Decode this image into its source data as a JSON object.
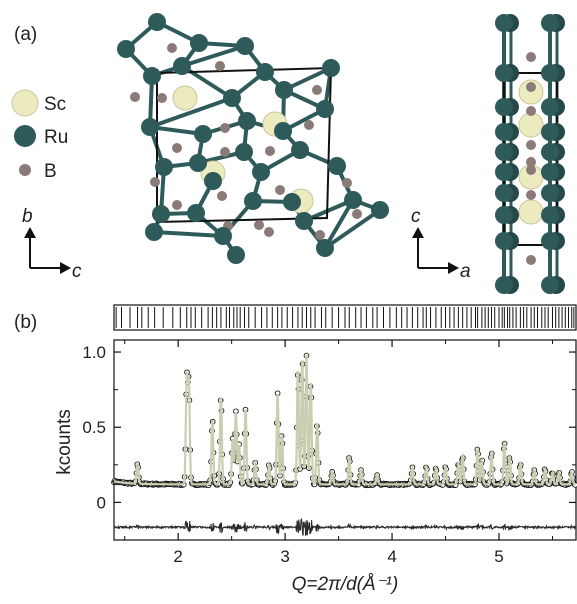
{
  "panels": {
    "a": "(a)",
    "b": "(b)"
  },
  "legend": [
    {
      "label": "Sc",
      "color": "#ecebc0"
    },
    {
      "label": "Ru",
      "color": "#2f5a5a"
    },
    {
      "label": "B",
      "color": "#8a7a78"
    }
  ],
  "axes_view1": {
    "vertical": "b",
    "horizontal": "c"
  },
  "axes_view2": {
    "vertical": "c",
    "horizontal": "a"
  },
  "colors": {
    "ru": "#2f5a5a",
    "sc": "#ecebc0",
    "b": "#8a7a78",
    "fit": "#c8cfb0",
    "data": "#1a1a1a",
    "frame": "#111111"
  },
  "chart_data": {
    "type": "scatter",
    "title": "",
    "xlabel": "Q=2π/d(Å⁻¹)",
    "ylabel": "kcounts",
    "xlim": [
      1.4,
      5.72
    ],
    "ylim": [
      -0.25,
      1.08
    ],
    "xticks": [
      2,
      3,
      4,
      5
    ],
    "xtick_labels": [
      "2",
      "3",
      "4",
      "5"
    ],
    "yticks": [
      0,
      0.5,
      1.0
    ],
    "ytick_labels": [
      "0",
      "0.5",
      "1.0"
    ],
    "background": 0.12,
    "peaks": [
      {
        "q": 1.62,
        "i": 0.25
      },
      {
        "q": 2.08,
        "i": 0.82
      },
      {
        "q": 2.1,
        "i": 0.78
      },
      {
        "q": 2.32,
        "i": 0.55
      },
      {
        "q": 2.4,
        "i": 0.7
      },
      {
        "q": 2.51,
        "i": 0.42
      },
      {
        "q": 2.54,
        "i": 0.6
      },
      {
        "q": 2.57,
        "i": 0.38
      },
      {
        "q": 2.63,
        "i": 0.62
      },
      {
        "q": 2.72,
        "i": 0.26
      },
      {
        "q": 2.85,
        "i": 0.25
      },
      {
        "q": 2.93,
        "i": 0.72
      },
      {
        "q": 2.97,
        "i": 0.45
      },
      {
        "q": 3.12,
        "i": 0.88
      },
      {
        "q": 3.16,
        "i": 0.95
      },
      {
        "q": 3.2,
        "i": 0.98
      },
      {
        "q": 3.24,
        "i": 0.8
      },
      {
        "q": 3.3,
        "i": 0.53
      },
      {
        "q": 3.44,
        "i": 0.2
      },
      {
        "q": 3.6,
        "i": 0.3
      },
      {
        "q": 3.71,
        "i": 0.21
      },
      {
        "q": 3.86,
        "i": 0.18
      },
      {
        "q": 4.19,
        "i": 0.23
      },
      {
        "q": 4.32,
        "i": 0.24
      },
      {
        "q": 4.41,
        "i": 0.23
      },
      {
        "q": 4.5,
        "i": 0.24
      },
      {
        "q": 4.62,
        "i": 0.26
      },
      {
        "q": 4.66,
        "i": 0.31
      },
      {
        "q": 4.8,
        "i": 0.36
      },
      {
        "q": 4.84,
        "i": 0.28
      },
      {
        "q": 4.93,
        "i": 0.33
      },
      {
        "q": 5.05,
        "i": 0.4
      },
      {
        "q": 5.1,
        "i": 0.3
      },
      {
        "q": 5.2,
        "i": 0.26
      },
      {
        "q": 5.33,
        "i": 0.22
      },
      {
        "q": 5.43,
        "i": 0.22
      },
      {
        "q": 5.5,
        "i": 0.2
      },
      {
        "q": 5.56,
        "i": 0.2
      },
      {
        "q": 5.68,
        "i": 0.2
      }
    ],
    "difference_offset": -0.165,
    "tick_marks_q": [
      1.42,
      1.47,
      1.55,
      1.62,
      1.66,
      1.72,
      1.78,
      1.86,
      1.95,
      2.02,
      2.08,
      2.12,
      2.16,
      2.22,
      2.28,
      2.32,
      2.36,
      2.4,
      2.45,
      2.48,
      2.52,
      2.55,
      2.58,
      2.62,
      2.66,
      2.72,
      2.78,
      2.83,
      2.88,
      2.93,
      2.97,
      3.02,
      3.07,
      3.12,
      3.16,
      3.2,
      3.24,
      3.28,
      3.34,
      3.38,
      3.44,
      3.5,
      3.56,
      3.6,
      3.66,
      3.71,
      3.76,
      3.82,
      3.86,
      3.92,
      3.98,
      4.04,
      4.09,
      4.14,
      4.19,
      4.24,
      4.29,
      4.32,
      4.36,
      4.41,
      4.46,
      4.5,
      4.54,
      4.58,
      4.62,
      4.66,
      4.7,
      4.74,
      4.78,
      4.8,
      4.84,
      4.87,
      4.9,
      4.93,
      4.96,
      5.0,
      5.03,
      5.05,
      5.08,
      5.1,
      5.13,
      5.16,
      5.2,
      5.23,
      5.26,
      5.3,
      5.33,
      5.36,
      5.4,
      5.43,
      5.46,
      5.5,
      5.53,
      5.56,
      5.59,
      5.62,
      5.65,
      5.68,
      5.7
    ]
  }
}
